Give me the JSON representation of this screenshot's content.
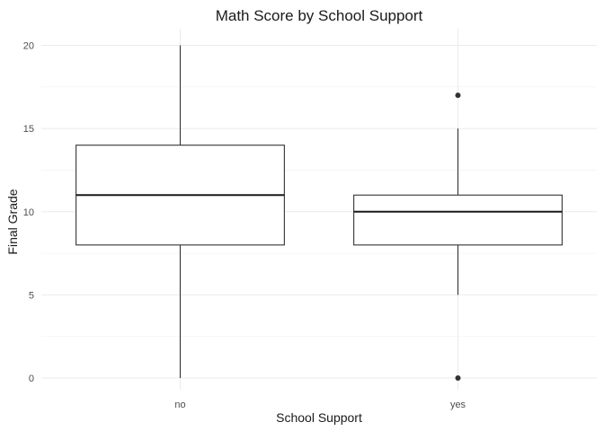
{
  "chart_data": {
    "type": "boxplot",
    "title": "Math Score by School Support",
    "xlabel": "School Support",
    "ylabel": "Final Grade",
    "categories": [
      "no",
      "yes"
    ],
    "ylim": [
      -0.7,
      21
    ],
    "yticks": [
      0,
      5,
      10,
      15,
      20
    ],
    "grid": true,
    "legend": "none",
    "boxes": [
      {
        "category": "no",
        "min": 0,
        "q1": 8,
        "median": 11,
        "q3": 14,
        "max": 20,
        "outliers": []
      },
      {
        "category": "yes",
        "min": 5,
        "q1": 8,
        "median": 10,
        "q3": 11,
        "max": 15,
        "outliers": [
          17,
          0
        ]
      }
    ]
  }
}
